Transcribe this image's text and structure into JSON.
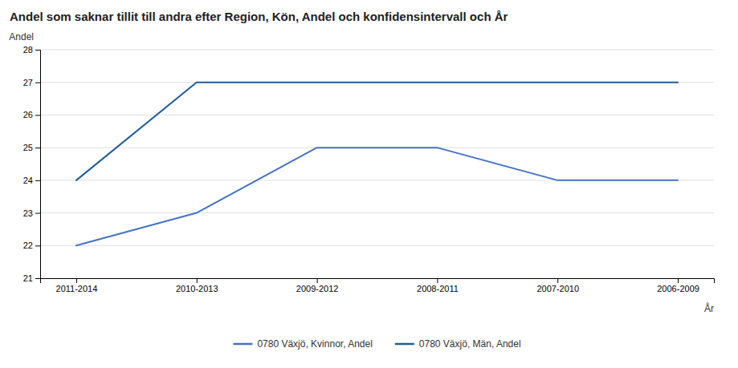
{
  "chart_data": {
    "type": "line",
    "title": "Andel som saknar tillit till andra efter Region, Kön, Andel och konfidensintervall och År",
    "xlabel": "År",
    "ylabel": "Andel",
    "categories": [
      "2011-2014",
      "2010-2013",
      "2009-2012",
      "2008-2011",
      "2007-2010",
      "2006-2009"
    ],
    "series": [
      {
        "name": "0780 Växjö, Kvinnor, Andel",
        "color": "#4472C4",
        "values": [
          22,
          23,
          25,
          25,
          24,
          24
        ]
      },
      {
        "name": "0780 Växjö, Män, Andel",
        "color": "#1F5C99",
        "values": [
          24,
          27,
          27,
          27,
          27,
          27
        ]
      }
    ],
    "ylim": [
      21,
      28
    ],
    "yticks": [
      21,
      22,
      23,
      24,
      25,
      26,
      27,
      28
    ],
    "grid": true,
    "legend": "bottom"
  }
}
